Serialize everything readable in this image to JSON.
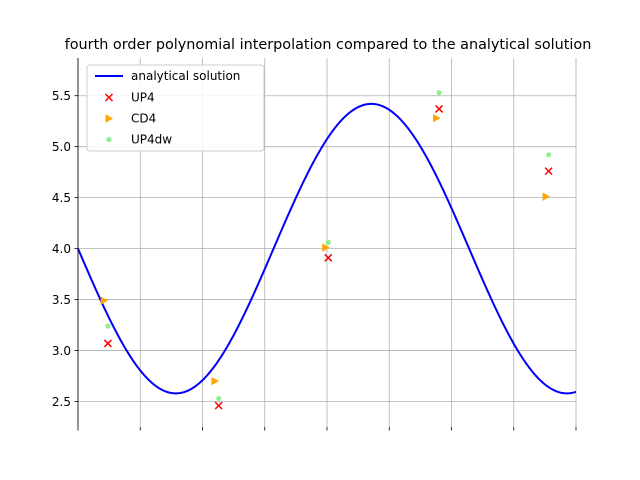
{
  "chart_data": {
    "type": "line",
    "title": "fourth order polynomial interpolation compared to the analytical solution",
    "xlabel": "",
    "ylabel": "",
    "xlim": [
      0,
      8
    ],
    "ylim": [
      2.25,
      5.87
    ],
    "x_ticks": [
      0,
      1,
      2,
      3,
      4,
      5,
      6,
      7,
      8
    ],
    "x_tick_labels_visible": false,
    "y_ticks": [
      2.5,
      3.0,
      3.5,
      4.0,
      4.5,
      5.0,
      5.5
    ],
    "y_tick_labels": [
      "2.5",
      "3.0",
      "3.5",
      "4.0",
      "4.5",
      "5.0",
      "5.5"
    ],
    "grid": true,
    "legend_position": "upper left",
    "analytical": {
      "name": "analytical solution",
      "color": "#0000ff",
      "center": 4.0,
      "amplitude": 1.42,
      "period": 6.2832,
      "phase": 0.0
    },
    "series": [
      {
        "name": "UP4",
        "marker": "x",
        "color": "#ff0000",
        "x": [
          0.48,
          2.26,
          4.02,
          5.8,
          7.56
        ],
        "y": [
          3.07,
          2.46,
          3.91,
          5.37,
          4.76
        ]
      },
      {
        "name": "CD4",
        "marker": "triangle-right",
        "color": "#ffa500",
        "x": [
          0.42,
          2.2,
          3.98,
          5.76,
          7.52
        ],
        "y": [
          3.49,
          2.7,
          4.01,
          5.28,
          4.51
        ]
      },
      {
        "name": "UP4dw",
        "marker": "dot",
        "color": "#90ee90",
        "x": [
          0.48,
          2.26,
          4.02,
          5.8,
          7.56
        ],
        "y": [
          3.24,
          2.53,
          4.06,
          5.53,
          4.92
        ]
      }
    ]
  }
}
